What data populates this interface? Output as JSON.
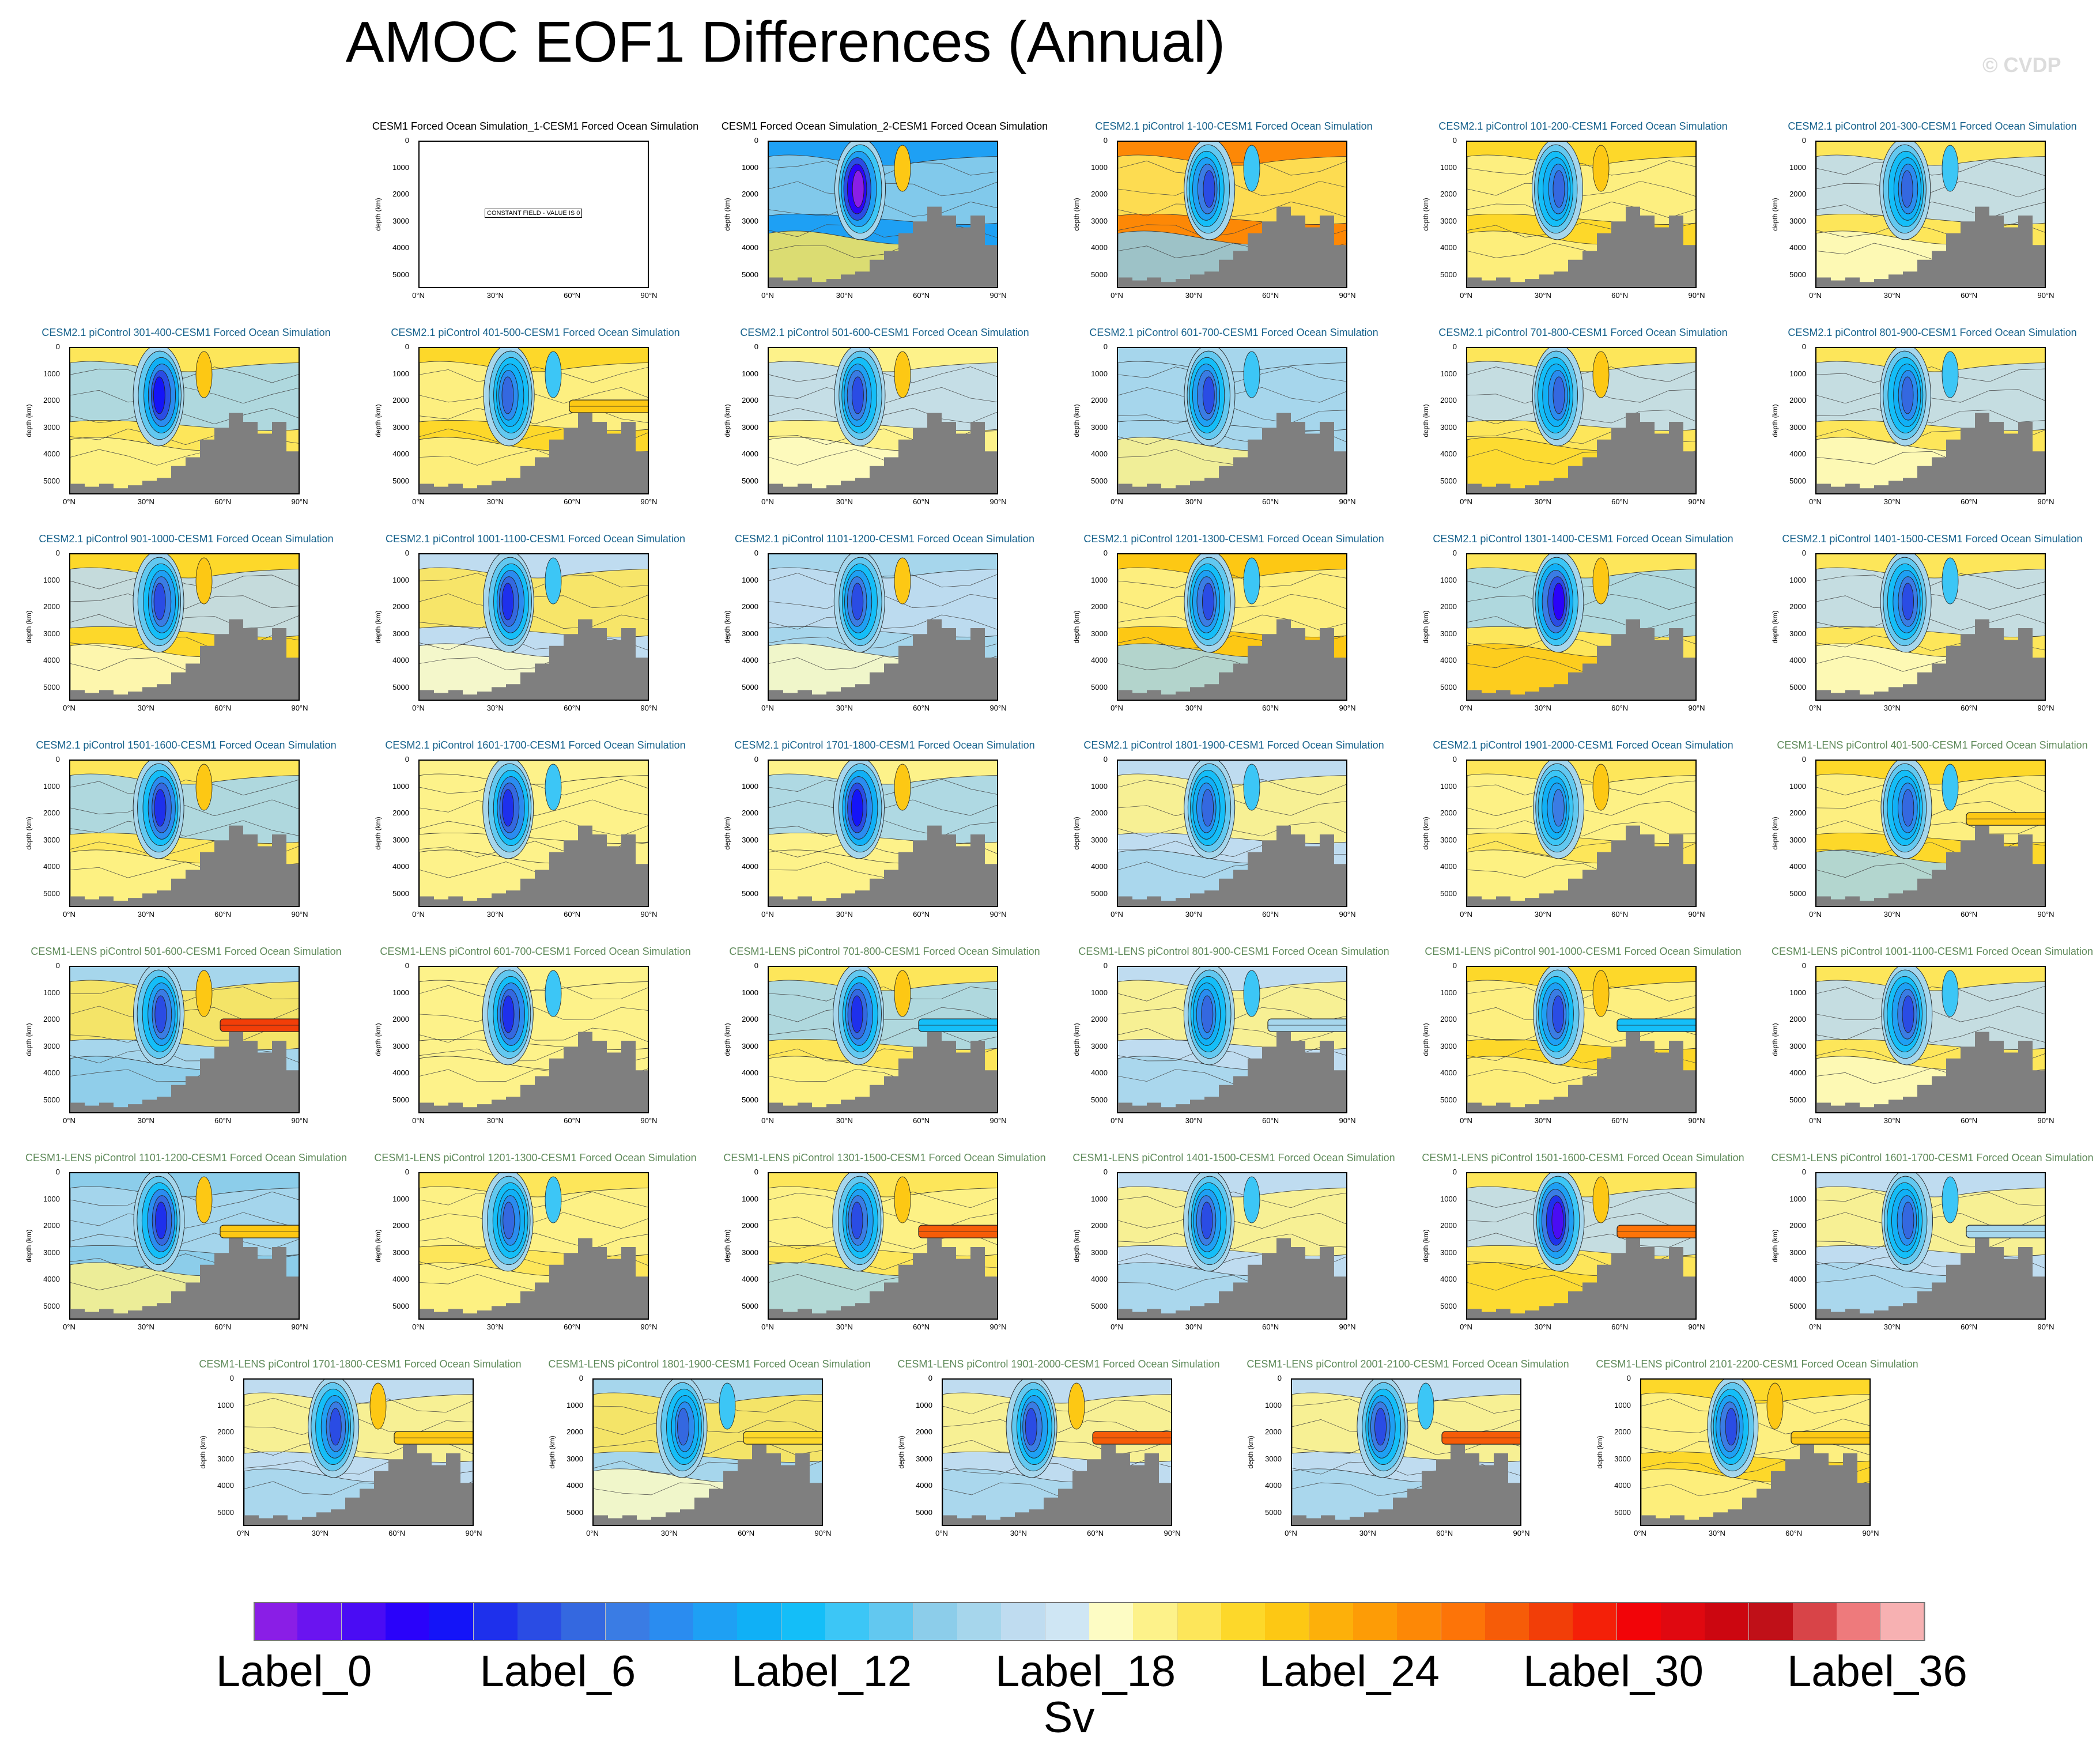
{
  "title": "AMOC EOF1 Differences (Annual)",
  "watermark": "© CVDP",
  "chart_data": {
    "type": "contour-panel-grid",
    "title": "AMOC EOF1 Differences (Annual)",
    "ylabel": "depth (km)",
    "yticks": [
      "0",
      "1000",
      "2000",
      "3000",
      "4000",
      "5000"
    ],
    "ylim": [
      5500,
      0
    ],
    "xticks": [
      "0°N",
      "30°N",
      "60°N",
      "90°N"
    ],
    "xlim": [
      0,
      90
    ],
    "colorbar": {
      "units": "Sv",
      "labels": [
        "Label_0",
        "Label_6",
        "Label_12",
        "Label_18",
        "Label_24",
        "Label_30",
        "Label_36"
      ],
      "label_indices": [
        0,
        6,
        12,
        18,
        24,
        30,
        36
      ],
      "colors": [
        "#8a1ee6",
        "#6a14f0",
        "#4a0cf4",
        "#2a02fa",
        "#1414f8",
        "#1e30ec",
        "#2a4ce4",
        "#3468e0",
        "#3a7ce4",
        "#2a8cf0",
        "#1ea0f4",
        "#10b0f6",
        "#14bef8",
        "#3cc6f6",
        "#62c8f0",
        "#8ccdea",
        "#a6d6ec",
        "#bfdcf0",
        "#cfe6f4",
        "#fdfcc4",
        "#fdf28a",
        "#fde65a",
        "#fdd82a",
        "#fdc814",
        "#fdb00a",
        "#fd9c06",
        "#fd8806",
        "#fd7408",
        "#f65c08",
        "#f23e08",
        "#f42008",
        "#f20408",
        "#e00810",
        "#cc0610",
        "#c01018",
        "#d84448",
        "#ee7a7c",
        "#f7b1b2"
      ]
    },
    "panels": [
      {
        "title": "CESM1 Forced Ocean Simulation_1-CESM1 Forced Ocean Simulation",
        "group": "cesm1",
        "constant_field": "CONSTANT FIELD - VALUE IS 0",
        "core": 0,
        "bg": 0,
        "mid": 0,
        "bar": null
      },
      {
        "title": "CESM1 Forced Ocean Simulation_2-CESM1 Forced Ocean Simulation",
        "group": "cesm1",
        "core": 16,
        "bg": -8,
        "mid": -3,
        "bar": null
      },
      {
        "title": "CESM2.1 piControl 1-100-CESM1 Forced Ocean Simulation",
        "group": "cesm2",
        "core": 10,
        "bg": 7,
        "mid": 2,
        "bar": null
      },
      {
        "title": "CESM2.1 piControl 101-200-CESM1 Forced Ocean Simulation",
        "group": "cesm2",
        "core": 9,
        "bg": 3,
        "mid": 1,
        "bar": null
      },
      {
        "title": "CESM2.1 piControl 201-300-CESM1 Forced Ocean Simulation",
        "group": "cesm2",
        "core": 9,
        "bg": 2,
        "mid": -1,
        "bar": null
      },
      {
        "title": "CESM2.1 piControl 301-400-CESM1 Forced Ocean Simulation",
        "group": "cesm2",
        "core": 12,
        "bg": 2,
        "mid": -2,
        "bar": null
      },
      {
        "title": "CESM2.1 piControl 401-500-CESM1 Forced Ocean Simulation",
        "group": "cesm2",
        "core": 9,
        "bg": 3,
        "mid": 1,
        "bar": 4
      },
      {
        "title": "CESM2.1 piControl 501-600-CESM1 Forced Ocean Simulation",
        "group": "cesm2",
        "core": 10,
        "bg": 1,
        "mid": -1,
        "bar": null
      },
      {
        "title": "CESM2.1 piControl 601-700-CESM1 Forced Ocean Simulation",
        "group": "cesm2",
        "core": 10,
        "bg": -2,
        "mid": -2,
        "bar": null
      },
      {
        "title": "CESM2.1 piControl 701-800-CESM1 Forced Ocean Simulation",
        "group": "cesm2",
        "core": 9,
        "bg": 2,
        "mid": -1,
        "bar": null
      },
      {
        "title": "CESM2.1 piControl 801-900-CESM1 Forced Ocean Simulation",
        "group": "cesm2",
        "core": 9,
        "bg": 2,
        "mid": -1,
        "bar": null
      },
      {
        "title": "CESM2.1 piControl 901-1000-CESM1 Forced Ocean Simulation",
        "group": "cesm2",
        "core": 10,
        "bg": 3,
        "mid": -1,
        "bar": null
      },
      {
        "title": "CESM2.1 piControl 1001-1100-CESM1 Forced Ocean Simulation",
        "group": "cesm2",
        "core": 11,
        "bg": -1,
        "mid": 2,
        "bar": null
      },
      {
        "title": "CESM2.1 piControl 1101-1200-CESM1 Forced Ocean Simulation",
        "group": "cesm2",
        "core": 10,
        "bg": -2,
        "mid": -1,
        "bar": null
      },
      {
        "title": "CESM2.1 piControl 1201-1300-CESM1 Forced Ocean Simulation",
        "group": "cesm2",
        "core": 10,
        "bg": 4,
        "mid": 1,
        "bar": null
      },
      {
        "title": "CESM2.1 piControl 1301-1400-CESM1 Forced Ocean Simulation",
        "group": "cesm2",
        "core": 13,
        "bg": 2,
        "mid": -2,
        "bar": null
      },
      {
        "title": "CESM2.1 piControl 1401-1500-CESM1 Forced Ocean Simulation",
        "group": "cesm2",
        "core": 10,
        "bg": 2,
        "mid": -1,
        "bar": null
      },
      {
        "title": "CESM2.1 piControl 1501-1600-CESM1 Forced Ocean Simulation",
        "group": "cesm2",
        "core": 11,
        "bg": 2,
        "mid": -2,
        "bar": null
      },
      {
        "title": "CESM2.1 piControl 1601-1700-CESM1 Forced Ocean Simulation",
        "group": "cesm2",
        "core": 11,
        "bg": 1,
        "mid": 1,
        "bar": null
      },
      {
        "title": "CESM2.1 piControl 1701-1800-CESM1 Forced Ocean Simulation",
        "group": "cesm2",
        "core": 12,
        "bg": 1,
        "mid": -2,
        "bar": null
      },
      {
        "title": "CESM2.1 piControl 1801-1900-CESM1 Forced Ocean Simulation",
        "group": "cesm2",
        "core": 9,
        "bg": -1,
        "mid": 1,
        "bar": null
      },
      {
        "title": "CESM2.1 piControl 1901-2000-CESM1 Forced Ocean Simulation",
        "group": "cesm2",
        "core": 8,
        "bg": 2,
        "mid": 1,
        "bar": null
      },
      {
        "title": "CESM1-LENS piControl 401-500-CESM1 Forced Ocean Simulation",
        "group": "lens",
        "core": 9,
        "bg": 3,
        "mid": 1,
        "bar": 4
      },
      {
        "title": "CESM1-LENS piControl 501-600-CESM1 Forced Ocean Simulation",
        "group": "lens",
        "core": 10,
        "bg": -2,
        "mid": 2,
        "bar": 10
      },
      {
        "title": "CESM1-LENS piControl 601-700-CESM1 Forced Ocean Simulation",
        "group": "lens",
        "core": 11,
        "bg": 1,
        "mid": 1,
        "bar": null
      },
      {
        "title": "CESM1-LENS piControl 701-800-CESM1 Forced Ocean Simulation",
        "group": "lens",
        "core": 11,
        "bg": 2,
        "mid": -2,
        "bar": -6
      },
      {
        "title": "CESM1-LENS piControl 801-900-CESM1 Forced Ocean Simulation",
        "group": "lens",
        "core": 9,
        "bg": -1,
        "mid": 1,
        "bar": -2
      },
      {
        "title": "CESM1-LENS piControl 901-1000-CESM1 Forced Ocean Simulation",
        "group": "lens",
        "core": 10,
        "bg": 3,
        "mid": 1,
        "bar": -6
      },
      {
        "title": "CESM1-LENS piControl 1001-1100-CESM1 Forced Ocean Simulation",
        "group": "lens",
        "core": 10,
        "bg": 2,
        "mid": -1,
        "bar": null
      },
      {
        "title": "CESM1-LENS piControl 1101-1200-CESM1 Forced Ocean Simulation",
        "group": "lens",
        "core": 11,
        "bg": -3,
        "mid": -2,
        "bar": 4
      },
      {
        "title": "CESM1-LENS piControl 1201-1300-CESM1 Forced Ocean Simulation",
        "group": "lens",
        "core": 9,
        "bg": 2,
        "mid": 1,
        "bar": null
      },
      {
        "title": "CESM1-LENS piControl 1301-1500-CESM1 Forced Ocean Simulation",
        "group": "lens",
        "core": 10,
        "bg": 2,
        "mid": 1,
        "bar": 9
      },
      {
        "title": "CESM1-LENS piControl 1401-1500-CESM1 Forced Ocean Simulation",
        "group": "lens",
        "core": 10,
        "bg": -1,
        "mid": 1,
        "bar": null
      },
      {
        "title": "CESM1-LENS piControl 1501-1600-CESM1 Forced Ocean Simulation",
        "group": "lens",
        "core": 14,
        "bg": 2,
        "mid": -1,
        "bar": 8
      },
      {
        "title": "CESM1-LENS piControl 1601-1700-CESM1 Forced Ocean Simulation",
        "group": "lens",
        "core": 9,
        "bg": -1,
        "mid": 1,
        "bar": -2
      },
      {
        "title": "CESM1-LENS piControl 1701-1800-CESM1 Forced Ocean Simulation",
        "group": "lens",
        "core": 10,
        "bg": -1,
        "mid": 1,
        "bar": 4
      },
      {
        "title": "CESM1-LENS piControl 1801-1900-CESM1 Forced Ocean Simulation",
        "group": "lens",
        "core": 9,
        "bg": -2,
        "mid": 2,
        "bar": 3
      },
      {
        "title": "CESM1-LENS piControl 1901-2000-CESM1 Forced Ocean Simulation",
        "group": "lens",
        "core": 10,
        "bg": -1,
        "mid": 1,
        "bar": 9
      },
      {
        "title": "CESM1-LENS piControl 2001-2100-CESM1 Forced Ocean Simulation",
        "group": "lens",
        "core": 10,
        "bg": -1,
        "mid": 1,
        "bar": 9
      },
      {
        "title": "CESM1-LENS piControl 2101-2200-CESM1 Forced Ocean Simulation",
        "group": "lens",
        "core": 10,
        "bg": 3,
        "mid": 1,
        "bar": 4
      }
    ]
  }
}
